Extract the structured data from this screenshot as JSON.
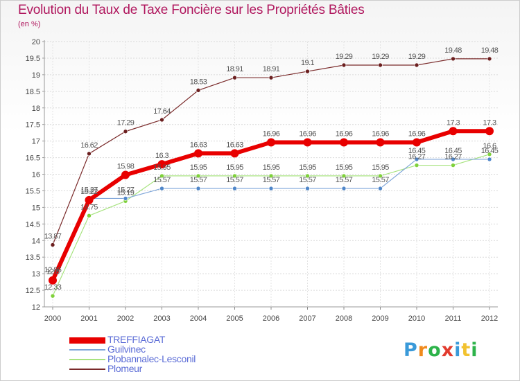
{
  "header": {
    "title": "Evolution du Taux de Taxe Foncière sur les Propriétés Bâties",
    "unit": "(en %)"
  },
  "logo": {
    "letters": [
      "P",
      "r",
      "o",
      "x",
      "i",
      "t",
      "i"
    ],
    "colors": [
      "#3a9ad9",
      "#f08a1c",
      "#2db34a",
      "#e23b2e",
      "#3a9ad9",
      "#f2c230",
      "#2db34a"
    ]
  },
  "chart_data": {
    "type": "line",
    "title": "Evolution du Taux de Taxe Foncière sur les Propriétés Bâties",
    "ylabel": "(en %)",
    "xlabel": "",
    "ylim": [
      12,
      20
    ],
    "yticks": [
      "12",
      "12.5",
      "13",
      "13.5",
      "14",
      "14.5",
      "15",
      "15.5",
      "16",
      "16.5",
      "17",
      "17.5",
      "18",
      "18.5",
      "19",
      "19.5",
      "20"
    ],
    "categories": [
      "2000",
      "2001",
      "2002",
      "2003",
      "2004",
      "2005",
      "2006",
      "2007",
      "2008",
      "2009",
      "2010",
      "2011",
      "2012"
    ],
    "legend_position": "bottom-left",
    "series": [
      {
        "name": "Plomeur",
        "color": "#7a2a2a",
        "marker": "#6b1f1f",
        "width": 1.2,
        "marker_r": 3,
        "values": [
          13.87,
          16.62,
          17.29,
          17.64,
          18.53,
          18.91,
          18.91,
          19.1,
          19.29,
          19.29,
          19.29,
          19.48,
          19.48
        ],
        "labels": [
          "13.87",
          "16.62",
          "17.29",
          "17.64",
          "18.53",
          "18.91",
          "18.91",
          "19.1",
          "19.29",
          "19.29",
          "19.29",
          "19.48",
          "19.48"
        ]
      },
      {
        "name": "Plobannalec-Lesconil",
        "color": "#a7e37f",
        "marker": "#7fd13b",
        "width": 1.2,
        "marker_r": 3,
        "values": [
          12.33,
          14.75,
          15.19,
          15.95,
          15.95,
          15.95,
          15.95,
          15.95,
          15.95,
          15.95,
          16.27,
          16.27,
          16.6
        ],
        "labels": [
          "12.33",
          "14.75",
          "15.19",
          "15.95",
          "15.95",
          "15.95",
          "15.95",
          "15.95",
          "15.95",
          "15.95",
          "16.27",
          "16.27",
          "16.6"
        ]
      },
      {
        "name": "Guilvinec",
        "color": "#7fa6d9",
        "marker": "#4f86c9",
        "width": 1.2,
        "marker_r": 3,
        "values": [
          12.86,
          15.27,
          15.27,
          15.57,
          15.57,
          15.57,
          15.57,
          15.57,
          15.57,
          15.57,
          16.45,
          16.45,
          16.45
        ],
        "labels": [
          "12.86",
          "15.27",
          "15.27",
          "15.57",
          "15.57",
          "15.57",
          "15.57",
          "15.57",
          "15.57",
          "15.57",
          "16.45",
          "16.45",
          "16.45"
        ]
      },
      {
        "name": "TREFFIAGAT",
        "color": "#e80000",
        "marker": "#e80000",
        "width": 6,
        "marker_r": 6,
        "values": [
          12.8,
          15.22,
          15.98,
          16.3,
          16.63,
          16.63,
          16.96,
          16.96,
          16.96,
          16.96,
          16.96,
          17.3,
          17.3
        ],
        "labels": [
          "12.8",
          "15.22",
          "15.98",
          "16.3",
          "16.63",
          "16.63",
          "16.96",
          "16.96",
          "16.96",
          "16.96",
          "16.96",
          "17.3",
          "17.3"
        ]
      }
    ],
    "legend": [
      "TREFFIAGAT",
      "Guilvinec",
      "Plobannalec-Lesconil",
      "Plomeur"
    ]
  }
}
